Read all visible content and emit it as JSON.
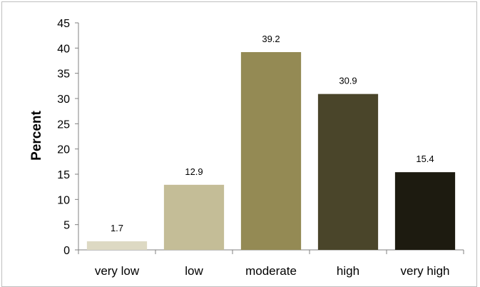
{
  "chart_data": {
    "type": "bar",
    "categories": [
      "very low",
      "low",
      "moderate",
      "high",
      "very high"
    ],
    "values": [
      1.7,
      12.9,
      39.2,
      30.9,
      15.4
    ],
    "data_labels": [
      "1.7",
      "12.9",
      "39.2",
      "30.9",
      "15.4"
    ],
    "bar_colors": [
      "#ddd9c3",
      "#c4bd97",
      "#948a54",
      "#4a452a",
      "#1d1b10"
    ],
    "title": "",
    "xlabel": "",
    "ylabel": "Percent",
    "ylim": [
      0,
      45
    ],
    "yticks": [
      0,
      5,
      10,
      15,
      20,
      25,
      30,
      35,
      40,
      45
    ],
    "grid": false,
    "legend": "none"
  }
}
